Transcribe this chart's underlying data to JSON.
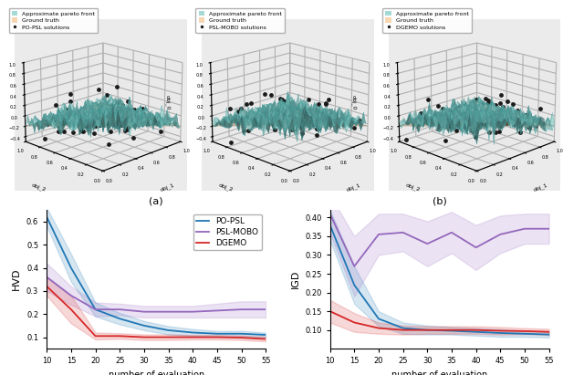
{
  "x_ticks": [
    10,
    15,
    20,
    25,
    30,
    35,
    40,
    45,
    50,
    55
  ],
  "hvd_popsl_mean": [
    0.62,
    0.4,
    0.22,
    0.18,
    0.15,
    0.13,
    0.12,
    0.115,
    0.115,
    0.11
  ],
  "hvd_popsl_std": [
    0.04,
    0.06,
    0.03,
    0.025,
    0.02,
    0.018,
    0.015,
    0.012,
    0.012,
    0.01
  ],
  "hvd_pslmobo_mean": [
    0.36,
    0.28,
    0.22,
    0.22,
    0.21,
    0.21,
    0.21,
    0.215,
    0.22,
    0.22
  ],
  "hvd_pslmobo_std": [
    0.06,
    0.04,
    0.03,
    0.025,
    0.025,
    0.025,
    0.025,
    0.03,
    0.035,
    0.035
  ],
  "hvd_dgemo_mean": [
    0.32,
    0.22,
    0.105,
    0.105,
    0.1,
    0.1,
    0.1,
    0.1,
    0.098,
    0.092
  ],
  "hvd_dgemo_std": [
    0.04,
    0.06,
    0.015,
    0.012,
    0.012,
    0.012,
    0.01,
    0.01,
    0.01,
    0.01
  ],
  "igd_popsl_mean": [
    0.38,
    0.22,
    0.13,
    0.105,
    0.1,
    0.098,
    0.095,
    0.092,
    0.09,
    0.088
  ],
  "igd_popsl_std": [
    0.04,
    0.05,
    0.02,
    0.015,
    0.012,
    0.01,
    0.01,
    0.01,
    0.008,
    0.008
  ],
  "igd_pslmobo_mean": [
    0.41,
    0.27,
    0.355,
    0.36,
    0.33,
    0.36,
    0.32,
    0.355,
    0.37,
    0.37
  ],
  "igd_pslmobo_std": [
    0.05,
    0.08,
    0.055,
    0.05,
    0.06,
    0.055,
    0.06,
    0.05,
    0.04,
    0.04
  ],
  "igd_dgemo_mean": [
    0.15,
    0.12,
    0.105,
    0.1,
    0.1,
    0.1,
    0.1,
    0.098,
    0.097,
    0.095
  ],
  "igd_dgemo_std": [
    0.03,
    0.025,
    0.015,
    0.012,
    0.01,
    0.01,
    0.01,
    0.01,
    0.008,
    0.008
  ],
  "color_popsl": "#1f77b4",
  "color_pslmobo": "#9467bd",
  "color_dgemo": "#d62728",
  "surf_cyan_color": "#7ecac4",
  "surf_orange_color": "#f5c592",
  "label_a": "(a)",
  "label_b": "(b)",
  "xlabel": "number of evaluation",
  "ylabel_hvd": "HVD",
  "ylabel_igd": "IGD",
  "hvd_ylim": [
    0.05,
    0.65
  ],
  "igd_ylim": [
    0.05,
    0.42
  ],
  "methods": [
    "PO-PSL",
    "PSL-MOBO",
    "DGEMO"
  ],
  "z_label": "obj_0",
  "x_label_3d": "obj_1",
  "y_label_3d": "obj_2"
}
